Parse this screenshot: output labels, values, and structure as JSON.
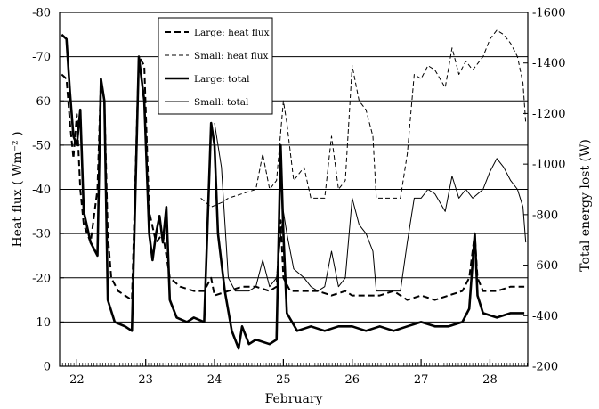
{
  "chart_data": {
    "type": "line",
    "title": "",
    "xlabel": "February",
    "ylabel_left": "Heat flux ( Wm⁻² )",
    "ylabel_right": "Total energy lost (W)",
    "x_ticks": [
      "22",
      "23",
      "24",
      "25",
      "26",
      "27",
      "28"
    ],
    "xlim": [
      21.75,
      28.55
    ],
    "ylim_left": [
      0,
      -80
    ],
    "ylim_right": [
      -200,
      -1600
    ],
    "y_ticks_left": [
      "-80",
      "-70",
      "-60",
      "-50",
      "-40",
      "-30",
      "-20",
      "-10",
      "0"
    ],
    "y_ticks_right": [
      "-1600",
      "-1400",
      "-1200",
      "-1000",
      "-800",
      "-600",
      "-400",
      "-200"
    ],
    "grid": "horizontal",
    "legend_position": "top-center",
    "series": [
      {
        "name": "Large: heat flux",
        "style": "dashed-thick",
        "axis": "left",
        "points": [
          [
            21.78,
            -66
          ],
          [
            21.85,
            -65
          ],
          [
            21.9,
            -55
          ],
          [
            21.95,
            -47
          ],
          [
            22.0,
            -57
          ],
          [
            22.05,
            -40
          ],
          [
            22.1,
            -32
          ],
          [
            22.2,
            -28
          ],
          [
            22.3,
            -40
          ],
          [
            22.35,
            -65
          ],
          [
            22.4,
            -60
          ],
          [
            22.45,
            -30
          ],
          [
            22.5,
            -20
          ],
          [
            22.6,
            -17
          ],
          [
            22.8,
            -15
          ],
          [
            22.9,
            -70
          ],
          [
            22.98,
            -68
          ],
          [
            23.05,
            -35
          ],
          [
            23.15,
            -28
          ],
          [
            23.25,
            -30
          ],
          [
            23.35,
            -20
          ],
          [
            23.5,
            -18
          ],
          [
            23.7,
            -17
          ],
          [
            23.85,
            -17
          ],
          [
            23.95,
            -20
          ],
          [
            24.0,
            -16
          ],
          [
            24.2,
            -17
          ],
          [
            24.4,
            -18
          ],
          [
            24.6,
            -18
          ],
          [
            24.8,
            -17
          ],
          [
            24.9,
            -18
          ],
          [
            24.96,
            -33
          ],
          [
            25.0,
            -20
          ],
          [
            25.1,
            -17
          ],
          [
            25.3,
            -17
          ],
          [
            25.5,
            -17
          ],
          [
            25.7,
            -16
          ],
          [
            25.9,
            -17
          ],
          [
            26.0,
            -16
          ],
          [
            26.2,
            -16
          ],
          [
            26.4,
            -16
          ],
          [
            26.6,
            -17
          ],
          [
            26.8,
            -15
          ],
          [
            27.0,
            -16
          ],
          [
            27.2,
            -15
          ],
          [
            27.4,
            -16
          ],
          [
            27.6,
            -17
          ],
          [
            27.7,
            -20
          ],
          [
            27.78,
            -30
          ],
          [
            27.82,
            -20
          ],
          [
            27.9,
            -17
          ],
          [
            28.1,
            -17
          ],
          [
            28.3,
            -18
          ],
          [
            28.5,
            -18
          ]
        ]
      },
      {
        "name": "Small: heat flux",
        "style": "dashed-thin",
        "axis": "left",
        "points": [
          [
            23.8,
            -38
          ],
          [
            23.95,
            -36
          ],
          [
            24.1,
            -37
          ],
          [
            24.2,
            -38
          ],
          [
            24.4,
            -39
          ],
          [
            24.6,
            -40
          ],
          [
            24.7,
            -48
          ],
          [
            24.8,
            -40
          ],
          [
            24.9,
            -42
          ],
          [
            25.0,
            -60
          ],
          [
            25.05,
            -55
          ],
          [
            25.15,
            -42
          ],
          [
            25.3,
            -45
          ],
          [
            25.4,
            -38
          ],
          [
            25.5,
            -38
          ],
          [
            25.6,
            -38
          ],
          [
            25.7,
            -52
          ],
          [
            25.8,
            -40
          ],
          [
            25.9,
            -42
          ],
          [
            26.0,
            -68
          ],
          [
            26.1,
            -60
          ],
          [
            26.2,
            -58
          ],
          [
            26.3,
            -52
          ],
          [
            26.35,
            -38
          ],
          [
            26.6,
            -38
          ],
          [
            26.7,
            -38
          ],
          [
            26.8,
            -48
          ],
          [
            26.9,
            -66
          ],
          [
            27.0,
            -65
          ],
          [
            27.1,
            -68
          ],
          [
            27.2,
            -67
          ],
          [
            27.35,
            -63
          ],
          [
            27.45,
            -72
          ],
          [
            27.55,
            -66
          ],
          [
            27.65,
            -69
          ],
          [
            27.75,
            -67
          ],
          [
            27.9,
            -70
          ],
          [
            28.0,
            -74
          ],
          [
            28.1,
            -76
          ],
          [
            28.2,
            -75
          ],
          [
            28.3,
            -73
          ],
          [
            28.4,
            -70
          ],
          [
            28.48,
            -64
          ],
          [
            28.52,
            -55
          ]
        ]
      },
      {
        "name": "Large: total",
        "style": "solid-thick",
        "axis": "left",
        "points": [
          [
            21.78,
            -75
          ],
          [
            21.85,
            -74
          ],
          [
            21.9,
            -62
          ],
          [
            21.95,
            -52
          ],
          [
            22.0,
            -50
          ],
          [
            22.05,
            -58
          ],
          [
            22.1,
            -35
          ],
          [
            22.2,
            -28
          ],
          [
            22.3,
            -25
          ],
          [
            22.35,
            -65
          ],
          [
            22.4,
            -60
          ],
          [
            22.45,
            -15
          ],
          [
            22.55,
            -10
          ],
          [
            22.7,
            -9
          ],
          [
            22.8,
            -8
          ],
          [
            22.9,
            -70
          ],
          [
            22.98,
            -60
          ],
          [
            23.05,
            -30
          ],
          [
            23.1,
            -24
          ],
          [
            23.15,
            -30
          ],
          [
            23.2,
            -34
          ],
          [
            23.25,
            -28
          ],
          [
            23.3,
            -36
          ],
          [
            23.35,
            -15
          ],
          [
            23.45,
            -11
          ],
          [
            23.6,
            -10
          ],
          [
            23.7,
            -11
          ],
          [
            23.85,
            -10
          ],
          [
            23.95,
            -55
          ],
          [
            24.0,
            -50
          ],
          [
            24.05,
            -30
          ],
          [
            24.15,
            -17
          ],
          [
            24.25,
            -8
          ],
          [
            24.35,
            -4
          ],
          [
            24.4,
            -9
          ],
          [
            24.5,
            -5
          ],
          [
            24.6,
            -6
          ],
          [
            24.8,
            -5
          ],
          [
            24.9,
            -6
          ],
          [
            24.96,
            -50
          ],
          [
            25.0,
            -30
          ],
          [
            25.05,
            -12
          ],
          [
            25.2,
            -8
          ],
          [
            25.4,
            -9
          ],
          [
            25.6,
            -8
          ],
          [
            25.8,
            -9
          ],
          [
            26.0,
            -9
          ],
          [
            26.2,
            -8
          ],
          [
            26.4,
            -9
          ],
          [
            26.6,
            -8
          ],
          [
            26.8,
            -9
          ],
          [
            27.0,
            -10
          ],
          [
            27.2,
            -9
          ],
          [
            27.4,
            -9
          ],
          [
            27.6,
            -10
          ],
          [
            27.7,
            -13
          ],
          [
            27.78,
            -30
          ],
          [
            27.82,
            -16
          ],
          [
            27.9,
            -12
          ],
          [
            28.1,
            -11
          ],
          [
            28.3,
            -12
          ],
          [
            28.5,
            -12
          ]
        ]
      },
      {
        "name": "Small: total",
        "style": "solid-thin",
        "axis": "left",
        "points": [
          [
            24.0,
            -55
          ],
          [
            24.1,
            -45
          ],
          [
            24.2,
            -20
          ],
          [
            24.3,
            -17
          ],
          [
            24.5,
            -17
          ],
          [
            24.6,
            -18
          ],
          [
            24.7,
            -24
          ],
          [
            24.8,
            -18
          ],
          [
            24.9,
            -20
          ],
          [
            25.0,
            -35
          ],
          [
            25.05,
            -30
          ],
          [
            25.15,
            -22
          ],
          [
            25.3,
            -20
          ],
          [
            25.4,
            -18
          ],
          [
            25.5,
            -17
          ],
          [
            25.6,
            -18
          ],
          [
            25.7,
            -26
          ],
          [
            25.8,
            -18
          ],
          [
            25.9,
            -20
          ],
          [
            26.0,
            -38
          ],
          [
            26.1,
            -32
          ],
          [
            26.2,
            -30
          ],
          [
            26.3,
            -26
          ],
          [
            26.35,
            -17
          ],
          [
            26.6,
            -17
          ],
          [
            26.7,
            -17
          ],
          [
            26.8,
            -28
          ],
          [
            26.9,
            -38
          ],
          [
            27.0,
            -38
          ],
          [
            27.1,
            -40
          ],
          [
            27.2,
            -39
          ],
          [
            27.35,
            -35
          ],
          [
            27.45,
            -43
          ],
          [
            27.55,
            -38
          ],
          [
            27.65,
            -40
          ],
          [
            27.75,
            -38
          ],
          [
            27.9,
            -40
          ],
          [
            28.0,
            -44
          ],
          [
            28.1,
            -47
          ],
          [
            28.2,
            -45
          ],
          [
            28.3,
            -42
          ],
          [
            28.4,
            -40
          ],
          [
            28.48,
            -36
          ],
          [
            28.52,
            -28
          ]
        ]
      }
    ]
  }
}
